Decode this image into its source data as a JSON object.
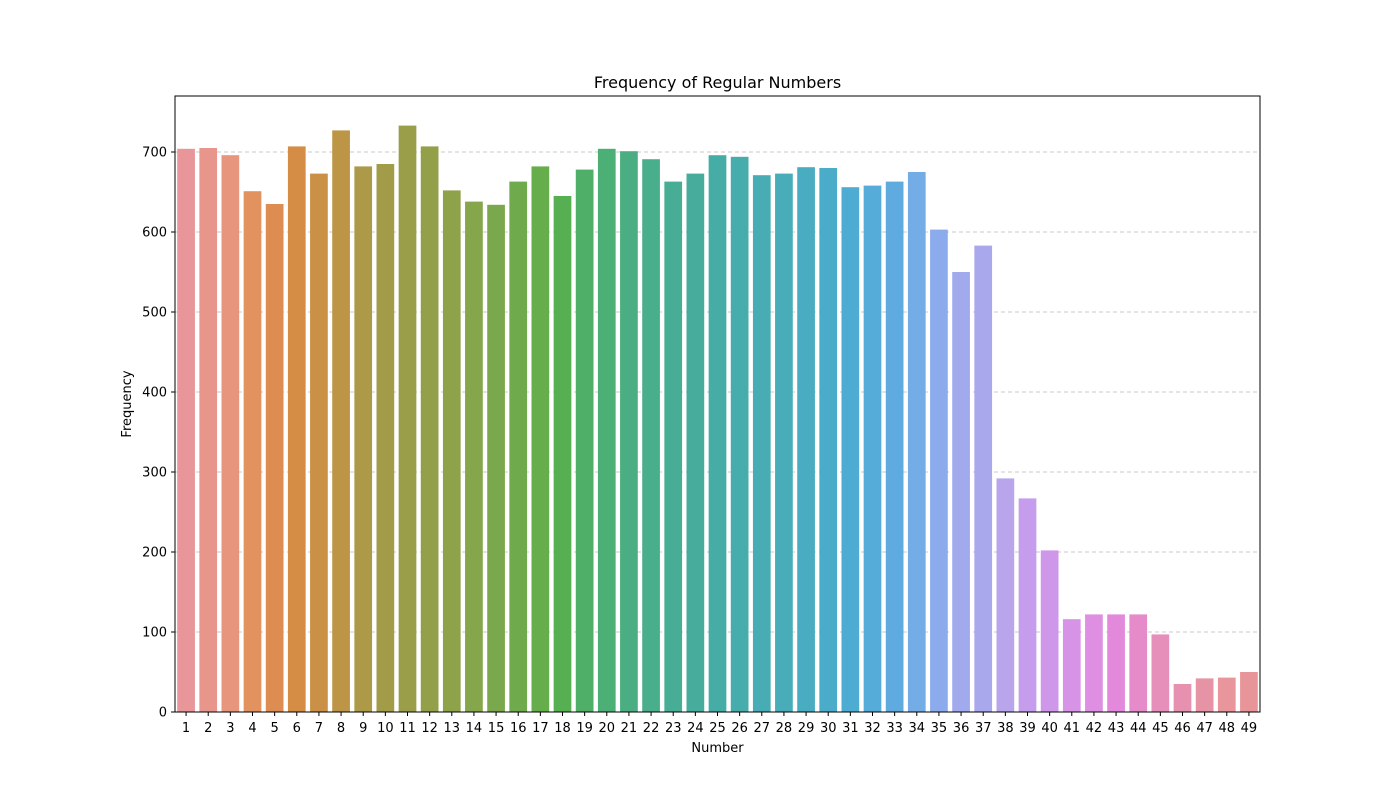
{
  "chart_data": {
    "type": "bar",
    "title": "Frequency of Regular Numbers",
    "xlabel": "Number",
    "ylabel": "Frequency",
    "ylim": [
      0,
      770
    ],
    "yticks": [
      0,
      100,
      200,
      300,
      400,
      500,
      600,
      700
    ],
    "grid": "horizontal dashed",
    "categories": [
      "1",
      "2",
      "3",
      "4",
      "5",
      "6",
      "7",
      "8",
      "9",
      "10",
      "11",
      "12",
      "13",
      "14",
      "15",
      "16",
      "17",
      "18",
      "19",
      "20",
      "21",
      "22",
      "23",
      "24",
      "25",
      "26",
      "27",
      "28",
      "29",
      "30",
      "31",
      "32",
      "33",
      "34",
      "35",
      "36",
      "37",
      "38",
      "39",
      "40",
      "41",
      "42",
      "43",
      "44",
      "45",
      "46",
      "47",
      "48",
      "49"
    ],
    "values": [
      704,
      705,
      696,
      651,
      635,
      707,
      673,
      727,
      682,
      685,
      733,
      707,
      652,
      638,
      634,
      663,
      682,
      645,
      678,
      704,
      701,
      691,
      663,
      673,
      696,
      694,
      671,
      673,
      681,
      680,
      656,
      658,
      663,
      675,
      603,
      550,
      583,
      292,
      267,
      202,
      116,
      122,
      122,
      122,
      97,
      35,
      42,
      43,
      50
    ],
    "colors": [
      "#e8969a",
      "#e8968b",
      "#e8957d",
      "#e2925e",
      "#dd8d52",
      "#d58d45",
      "#ca9046",
      "#bc9547",
      "#ad9a48",
      "#a29c48",
      "#9a9e48",
      "#939f49",
      "#8da249",
      "#85a64a",
      "#79a94c",
      "#6fab4c",
      "#66ad4c",
      "#56af50",
      "#4fae68",
      "#4caf76",
      "#4aae82",
      "#49ae8c",
      "#48ad95",
      "#47ac9c",
      "#46ada6",
      "#46acac",
      "#47acb3",
      "#48acb9",
      "#49acc0",
      "#4aacc8",
      "#4eacd2",
      "#55acd9",
      "#5fabe0",
      "#74ade5",
      "#8cabec",
      "#a0aaec",
      "#aaa8ec",
      "#b8a5ec",
      "#c59dec",
      "#ce97ea",
      "#d793e5",
      "#df8fe1",
      "#e389dc",
      "#e68bc9",
      "#e68fbb",
      "#e691b0",
      "#e693a5",
      "#e8959c",
      "#e8959a"
    ]
  }
}
